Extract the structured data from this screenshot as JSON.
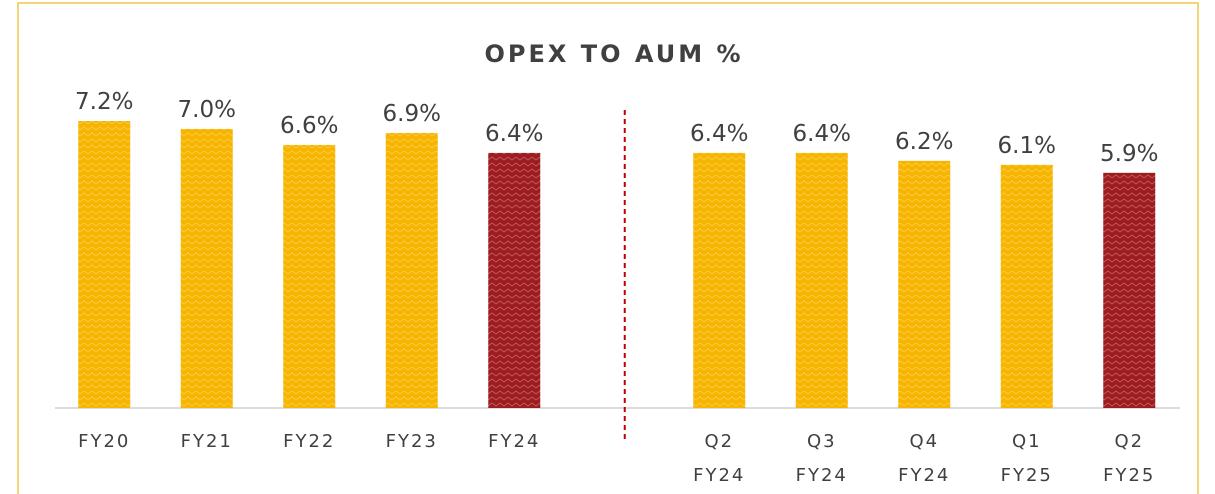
{
  "chart_data": {
    "type": "bar",
    "title": "OPEX TO AUM %",
    "categories": [
      "FY20",
      "FY21",
      "FY22",
      "FY23",
      "FY24",
      null,
      "Q2\nFY24",
      "Q3\nFY24",
      "Q4\nFY24",
      "Q1\nFY25",
      "Q2\nFY25"
    ],
    "values": [
      7.2,
      7.0,
      6.6,
      6.9,
      6.4,
      null,
      6.4,
      6.4,
      6.2,
      6.1,
      5.9
    ],
    "value_labels": [
      "7.2%",
      "7.0%",
      "6.6%",
      "6.9%",
      "6.4%",
      null,
      "6.4%",
      "6.4%",
      "6.2%",
      "6.1%",
      "5.9%"
    ],
    "colors": [
      "#f7b500",
      "#f7b500",
      "#f7b500",
      "#f7b500",
      "#9e1b1f",
      null,
      "#f7b500",
      "#f7b500",
      "#f7b500",
      "#f7b500",
      "#9e1b1f"
    ]
  }
}
